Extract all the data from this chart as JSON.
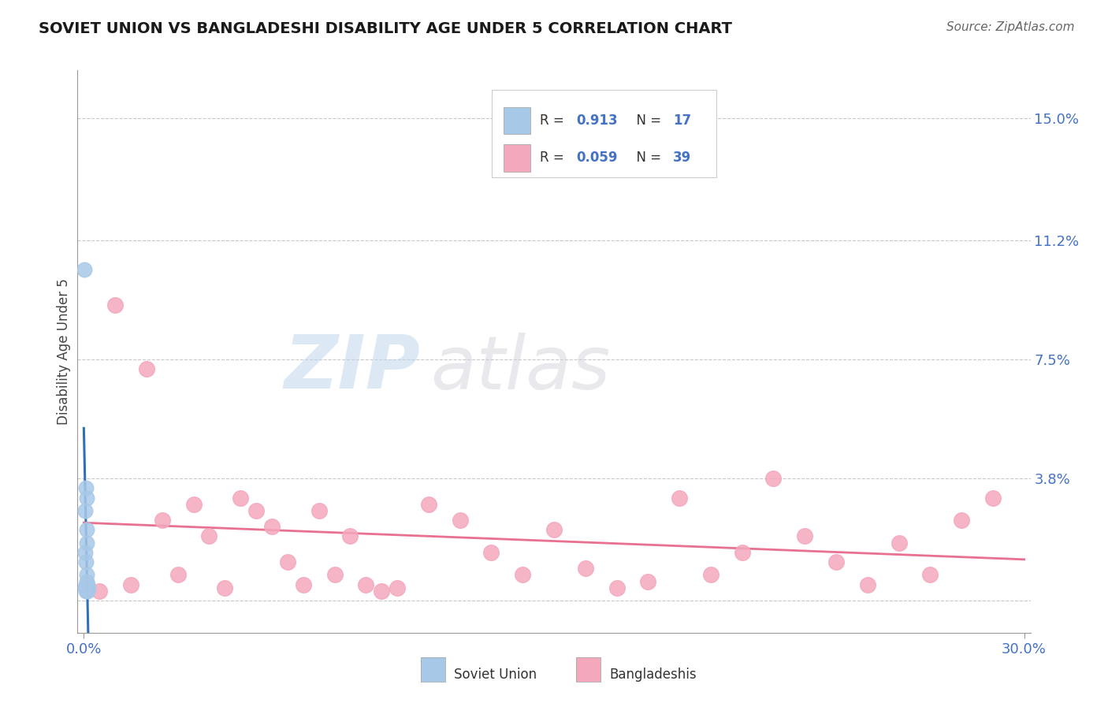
{
  "title": "SOVIET UNION VS BANGLADESHI DISABILITY AGE UNDER 5 CORRELATION CHART",
  "source": "Source: ZipAtlas.com",
  "ylabel": "Disability Age Under 5",
  "y_ticks": [
    0.0,
    3.8,
    7.5,
    11.2,
    15.0
  ],
  "y_tick_labels": [
    "",
    "3.8%",
    "7.5%",
    "11.2%",
    "15.0%"
  ],
  "x_min": 0.0,
  "x_max": 30.0,
  "y_min": -1.0,
  "y_max": 16.5,
  "soviet_x": [
    0.02,
    0.04,
    0.05,
    0.05,
    0.06,
    0.06,
    0.07,
    0.07,
    0.08,
    0.08,
    0.09,
    0.09,
    0.1,
    0.1,
    0.11,
    0.12,
    0.13
  ],
  "soviet_y": [
    10.3,
    0.4,
    1.5,
    2.8,
    0.3,
    3.5,
    0.5,
    1.2,
    0.4,
    1.8,
    3.2,
    0.6,
    0.8,
    2.2,
    0.5,
    0.3,
    0.4
  ],
  "bd_x": [
    0.5,
    1.0,
    1.5,
    2.0,
    2.5,
    3.0,
    3.5,
    4.0,
    4.5,
    5.0,
    5.5,
    6.0,
    6.5,
    7.0,
    7.5,
    8.0,
    8.5,
    9.0,
    9.5,
    10.0,
    11.0,
    12.0,
    13.0,
    14.0,
    15.0,
    16.0,
    17.0,
    18.0,
    19.0,
    20.0,
    21.0,
    22.0,
    23.0,
    24.0,
    25.0,
    26.0,
    27.0,
    28.0,
    29.0
  ],
  "bd_y": [
    0.3,
    9.2,
    0.5,
    7.2,
    2.5,
    0.8,
    3.0,
    2.0,
    0.4,
    3.2,
    2.8,
    2.3,
    1.2,
    0.5,
    2.8,
    0.8,
    2.0,
    0.5,
    0.3,
    0.4,
    3.0,
    2.5,
    1.5,
    0.8,
    2.2,
    1.0,
    0.4,
    0.6,
    3.2,
    0.8,
    1.5,
    3.8,
    2.0,
    1.2,
    0.5,
    1.8,
    0.8,
    2.5,
    3.2
  ],
  "soviet_color": "#a8c8e8",
  "bangladeshi_color": "#f4a8bc",
  "soviet_line_color": "#3070b8",
  "bangladeshi_line_color": "#e87090",
  "accent_color": "#4472c4",
  "R_soviet": "0.913",
  "N_soviet": "17",
  "R_bangladeshi": "0.059",
  "N_bangladeshi": "39",
  "watermark_zip": "ZIP",
  "watermark_atlas": "atlas",
  "background_color": "#ffffff",
  "grid_color": "#c8c8c8"
}
